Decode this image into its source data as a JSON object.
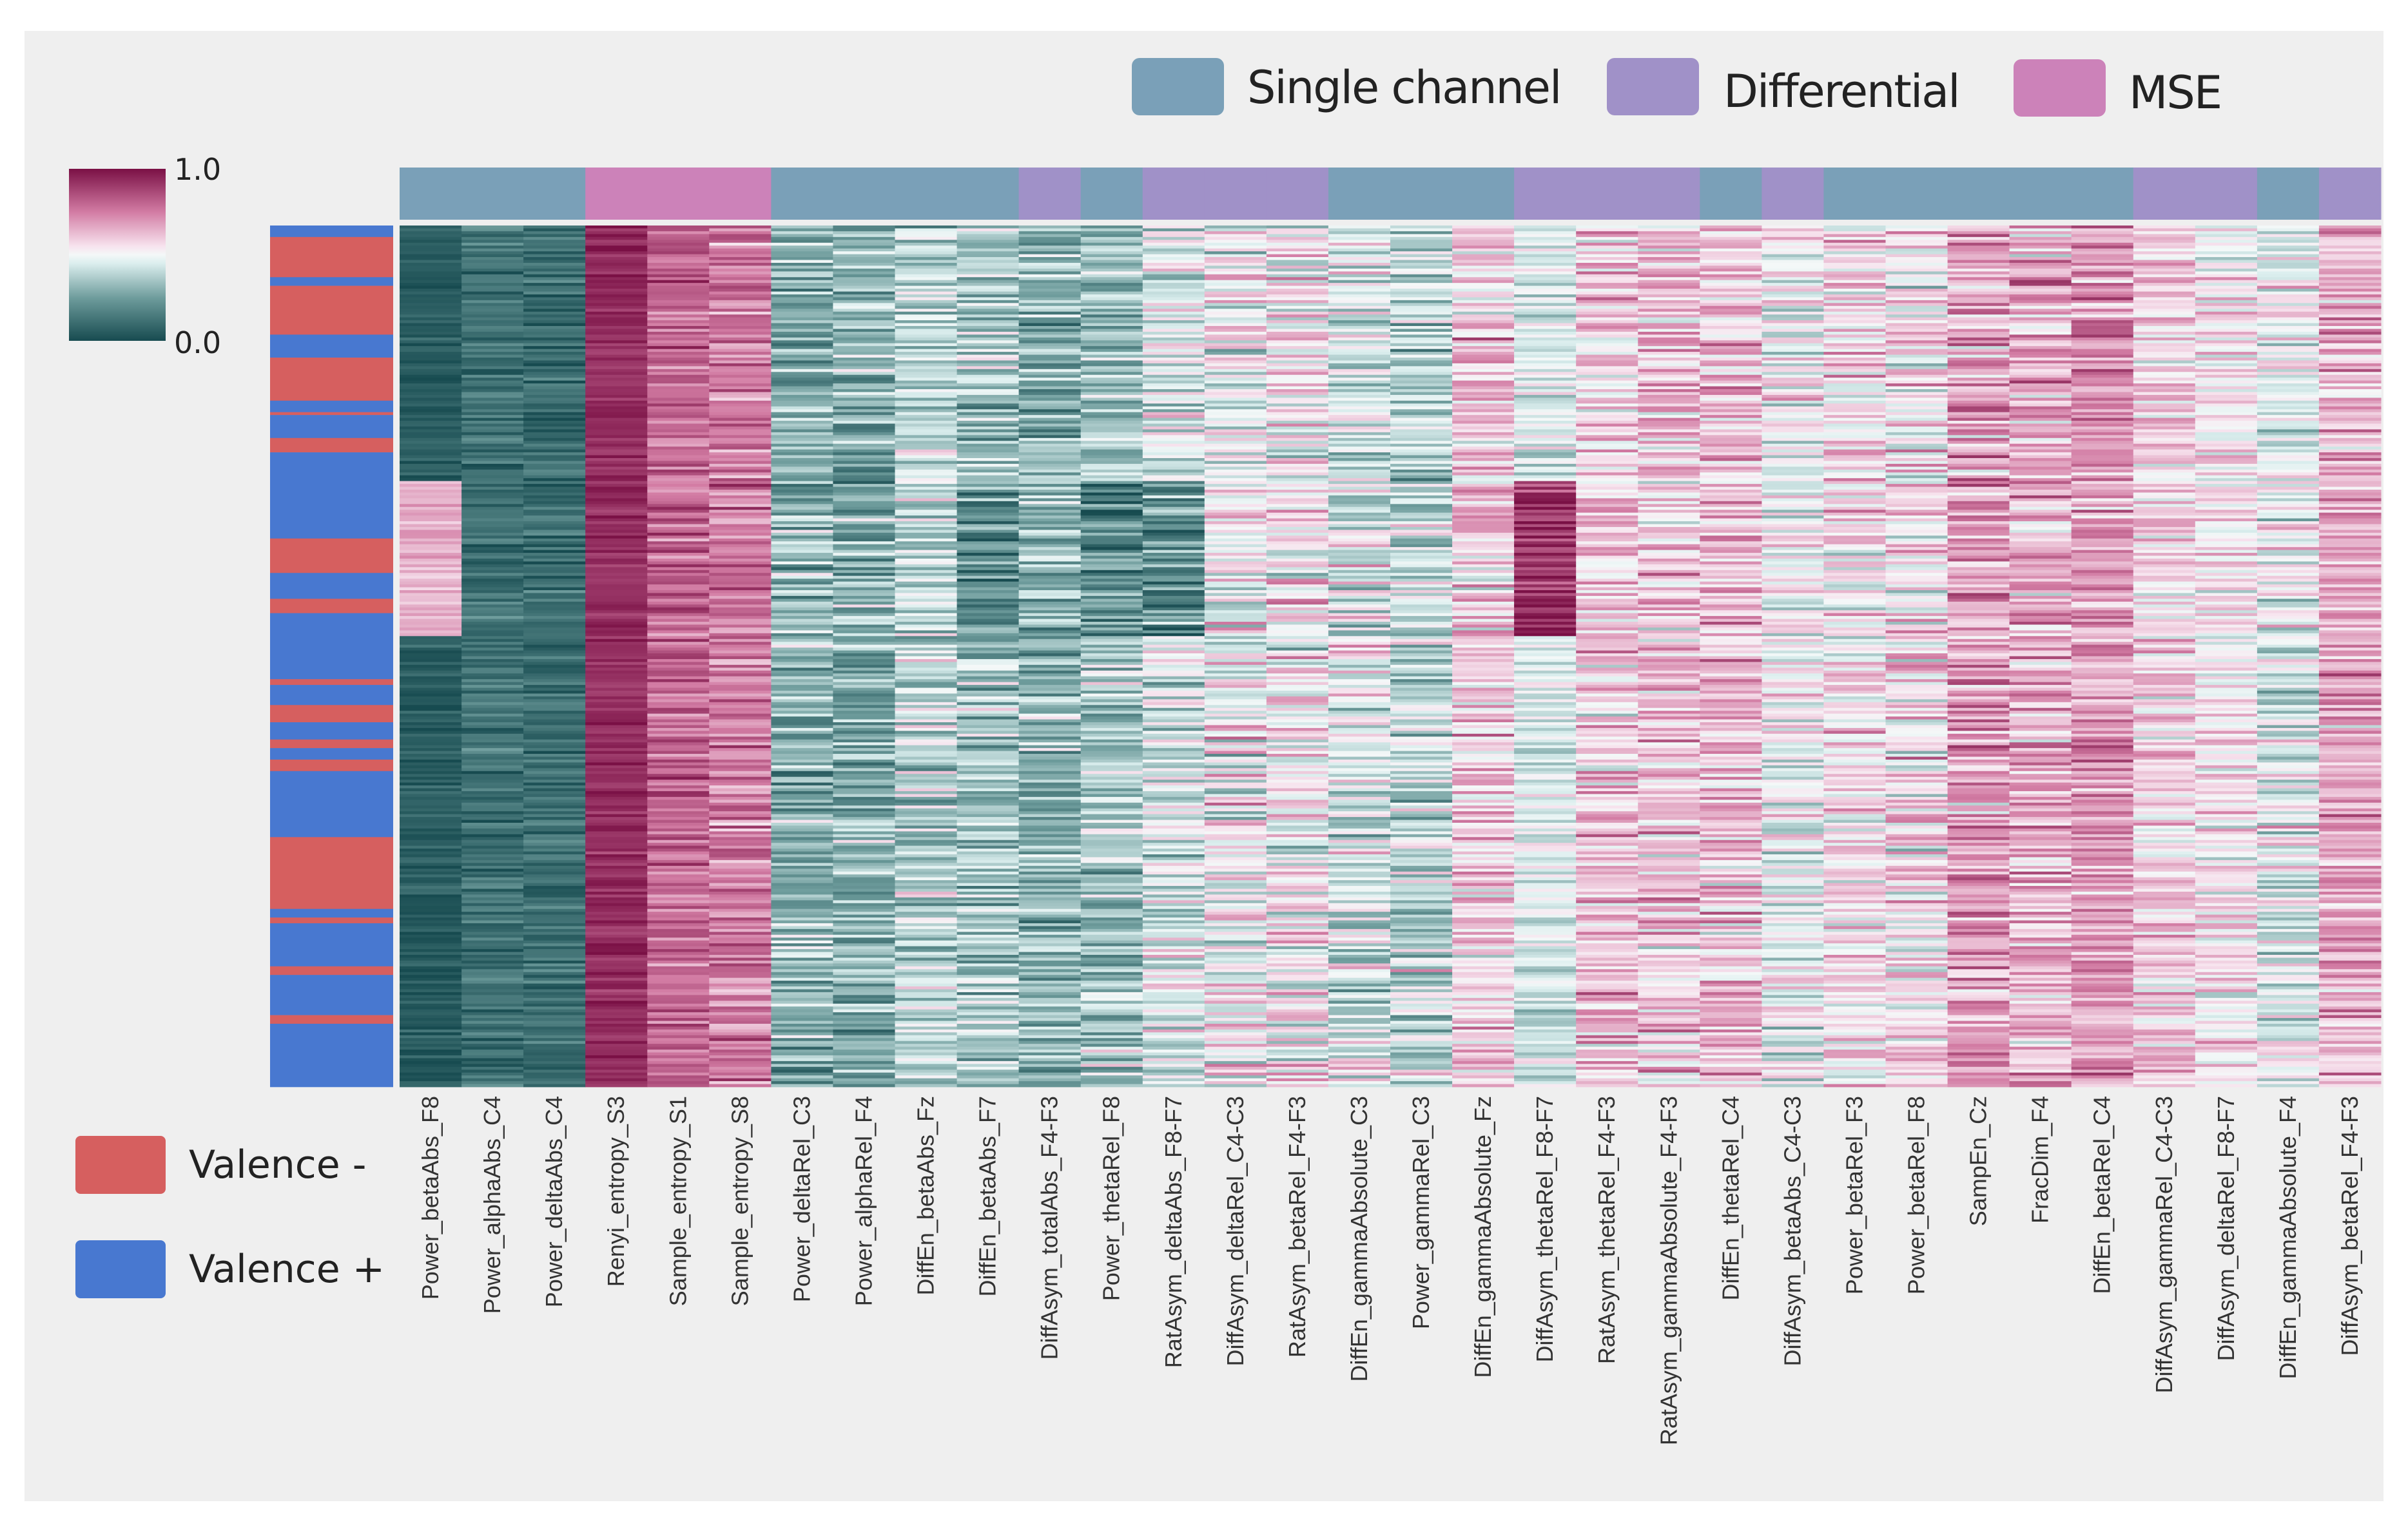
{
  "chart_data": {
    "type": "heatmap",
    "title": "",
    "colorbar": {
      "min_label": "1.0",
      "max_label": "0.0",
      "range": [
        0.0,
        1.0
      ],
      "top_label": "1.0",
      "bottom_label": "0.0"
    },
    "colormap": [
      [
        0.0,
        "#174b50"
      ],
      [
        0.25,
        "#6e9c9c"
      ],
      [
        0.45,
        "#dbeeee"
      ],
      [
        0.5,
        "#f4f8f8"
      ],
      [
        0.55,
        "#f7e3ee"
      ],
      [
        0.75,
        "#d27ba3"
      ],
      [
        1.0,
        "#7a1045"
      ]
    ],
    "feature_type_legend": [
      {
        "name": "Single channel",
        "color": "#7aa0b8"
      },
      {
        "name": "Differential",
        "color": "#a091c8"
      },
      {
        "name": "MSE",
        "color": "#cc82b9"
      }
    ],
    "valence_legend": [
      {
        "name": "Valence -",
        "color": "#d65f5f"
      },
      {
        "name": "Valence +",
        "color": "#4878d0"
      }
    ],
    "n_rows": 300,
    "row_valence_segments": [
      [
        "+",
        4
      ],
      [
        "-",
        14
      ],
      [
        "+",
        3
      ],
      [
        "-",
        17
      ],
      [
        "+",
        8
      ],
      [
        "-",
        15
      ],
      [
        "+",
        4
      ],
      [
        "-",
        1
      ],
      [
        "+",
        8
      ],
      [
        "-",
        5
      ],
      [
        "+",
        30
      ],
      [
        "-",
        12
      ],
      [
        "+",
        9
      ],
      [
        "-",
        5
      ],
      [
        "+",
        23
      ],
      [
        "-",
        2
      ],
      [
        "+",
        7
      ],
      [
        "-",
        6
      ],
      [
        "+",
        6
      ],
      [
        "-",
        3
      ],
      [
        "+",
        4
      ],
      [
        "-",
        4
      ],
      [
        "+",
        23
      ],
      [
        "-",
        25
      ],
      [
        "+",
        3
      ],
      [
        "-",
        2
      ],
      [
        "+",
        15
      ],
      [
        "-",
        3
      ],
      [
        "+",
        14
      ],
      [
        "-",
        3
      ],
      [
        "+",
        22
      ]
    ],
    "columns": [
      {
        "label": "Power_betaAbs_F8",
        "type": "Single channel",
        "mean": 0.05,
        "spread": 0.05
      },
      {
        "label": "Power_alphaAbs_C4",
        "type": "Single channel",
        "mean": 0.12,
        "spread": 0.08
      },
      {
        "label": "Power_deltaAbs_C4",
        "type": "Single channel",
        "mean": 0.1,
        "spread": 0.08
      },
      {
        "label": "Renyi_entropy_S3",
        "type": "MSE",
        "mean": 0.93,
        "spread": 0.05
      },
      {
        "label": "Sample_entropy_S1",
        "type": "MSE",
        "mean": 0.8,
        "spread": 0.1
      },
      {
        "label": "Sample_entropy_S8",
        "type": "MSE",
        "mean": 0.75,
        "spread": 0.12
      },
      {
        "label": "Power_deltaRel_C3",
        "type": "Single channel",
        "mean": 0.3,
        "spread": 0.15
      },
      {
        "label": "Power_alphaRel_F4",
        "type": "Single channel",
        "mean": 0.3,
        "spread": 0.15
      },
      {
        "label": "DiffEn_betaAbs_Fz",
        "type": "Single channel",
        "mean": 0.38,
        "spread": 0.15
      },
      {
        "label": "DiffEn_betaAbs_F7",
        "type": "Single channel",
        "mean": 0.35,
        "spread": 0.15
      },
      {
        "label": "DiffAsym_totalAbs_F4-F3",
        "type": "Differential",
        "mean": 0.3,
        "spread": 0.15
      },
      {
        "label": "Power_thetaRel_F8",
        "type": "Single channel",
        "mean": 0.35,
        "spread": 0.15
      },
      {
        "label": "RatAsym_deltaAbs_F8-F7",
        "type": "Differential",
        "mean": 0.45,
        "spread": 0.17
      },
      {
        "label": "DiffAsym_deltaRel_C4-C3",
        "type": "Differential",
        "mean": 0.5,
        "spread": 0.17
      },
      {
        "label": "RatAsym_betaRel_F4-F3",
        "type": "Differential",
        "mean": 0.52,
        "spread": 0.17
      },
      {
        "label": "DiffEn_gammaAbsolute_C3",
        "type": "Single channel",
        "mean": 0.45,
        "spread": 0.17
      },
      {
        "label": "Power_gammaRel_C3",
        "type": "Single channel",
        "mean": 0.4,
        "spread": 0.17
      },
      {
        "label": "DiffEn_gammaAbsolute_Fz",
        "type": "Single channel",
        "mean": 0.6,
        "spread": 0.15
      },
      {
        "label": "DiffAsym_thetaRel_F8-F7",
        "type": "Differential",
        "mean": 0.45,
        "spread": 0.1
      },
      {
        "label": "RatAsym_thetaRel_F4-F3",
        "type": "Differential",
        "mean": 0.6,
        "spread": 0.15
      },
      {
        "label": "RatAsym_gammaAbsolute_F4-F3",
        "type": "Differential",
        "mean": 0.6,
        "spread": 0.15
      },
      {
        "label": "DiffEn_thetaRel_C4",
        "type": "Single channel",
        "mean": 0.62,
        "spread": 0.15
      },
      {
        "label": "DiffAsym_betaAbs_C4-C3",
        "type": "Differential",
        "mean": 0.5,
        "spread": 0.15
      },
      {
        "label": "Power_betaRel_F3",
        "type": "Single channel",
        "mean": 0.55,
        "spread": 0.15
      },
      {
        "label": "Power_betaRel_F8",
        "type": "Single channel",
        "mean": 0.55,
        "spread": 0.17
      },
      {
        "label": "SampEn_Cz",
        "type": "Single channel",
        "mean": 0.68,
        "spread": 0.15
      },
      {
        "label": "FracDim_F4",
        "type": "Single channel",
        "mean": 0.65,
        "spread": 0.15
      },
      {
        "label": "DiffEn_betaRel_C4",
        "type": "Single channel",
        "mean": 0.7,
        "spread": 0.13
      },
      {
        "label": "DiffAsym_gammaRel_C4-C3",
        "type": "Differential",
        "mean": 0.58,
        "spread": 0.13
      },
      {
        "label": "DiffAsym_deltaRel_F8-F7",
        "type": "Differential",
        "mean": 0.55,
        "spread": 0.13
      },
      {
        "label": "DiffEn_gammaAbsolute_F4",
        "type": "Single channel",
        "mean": 0.48,
        "spread": 0.15
      },
      {
        "label": "DiffAsym_betaRel_F4-F3",
        "type": "Differential",
        "mean": 0.65,
        "spread": 0.13
      }
    ],
    "blocks": [
      {
        "column": 0,
        "row_start": 89,
        "row_end": 143,
        "mean": 0.65
      },
      {
        "column": 18,
        "row_start": 89,
        "row_end": 143,
        "mean": 0.92
      },
      {
        "column": 9,
        "row_start": 89,
        "row_end": 143,
        "mean": 0.22
      },
      {
        "column": 11,
        "row_start": 89,
        "row_end": 143,
        "mean": 0.2
      },
      {
        "column": 12,
        "row_start": 89,
        "row_end": 143,
        "mean": 0.22
      }
    ]
  }
}
